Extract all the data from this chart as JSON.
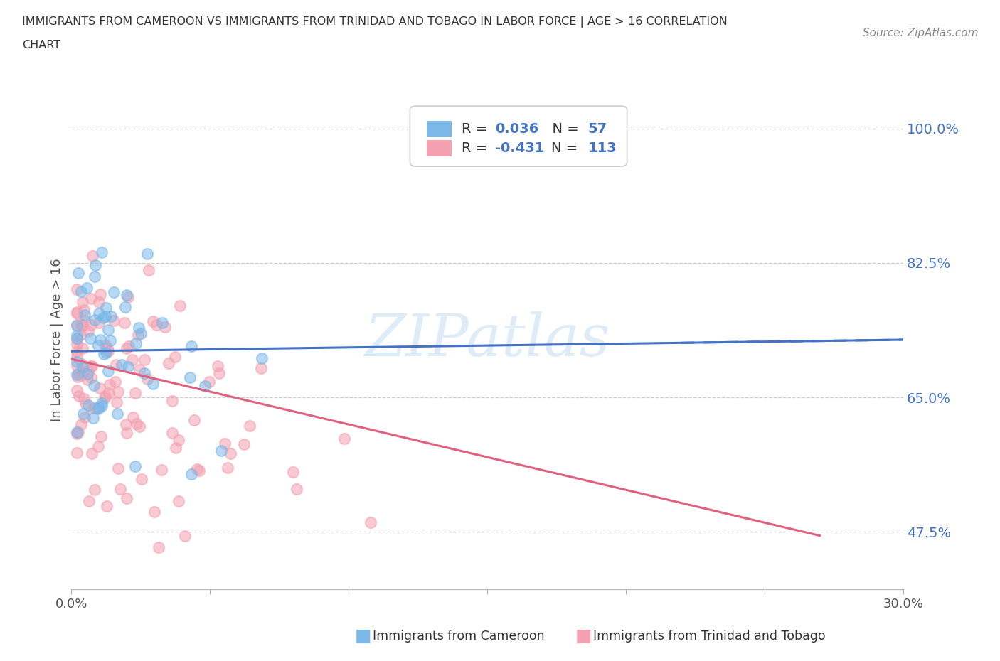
{
  "title_line1": "IMMIGRANTS FROM CAMEROON VS IMMIGRANTS FROM TRINIDAD AND TOBAGO IN LABOR FORCE | AGE > 16 CORRELATION",
  "title_line2": "CHART",
  "source_text": "Source: ZipAtlas.com",
  "ylabel": "In Labor Force | Age > 16",
  "xlim": [
    0.0,
    0.3
  ],
  "ylim": [
    0.4,
    1.05
  ],
  "yticks": [
    0.475,
    0.65,
    0.825,
    1.0
  ],
  "ytick_labels": [
    "47.5%",
    "65.0%",
    "82.5%",
    "100.0%"
  ],
  "xticks": [
    0.0,
    0.05,
    0.1,
    0.15,
    0.2,
    0.25,
    0.3
  ],
  "xtick_labels": [
    "0.0%",
    "",
    "",
    "",
    "",
    "",
    "30.0%"
  ],
  "color_cameroon": "#7bb8e8",
  "color_tt": "#f4a0b0",
  "line_color_cameroon": "#4472c4",
  "line_color_tt": "#e06080",
  "watermark_text": "ZIPatlas",
  "cam_trend_x0": 0.0,
  "cam_trend_y0": 0.71,
  "cam_trend_x1": 0.3,
  "cam_trend_y1": 0.725,
  "tt_trend_x0": 0.0,
  "tt_trend_y0": 0.7,
  "tt_trend_x1": 0.27,
  "tt_trend_y1": 0.47
}
